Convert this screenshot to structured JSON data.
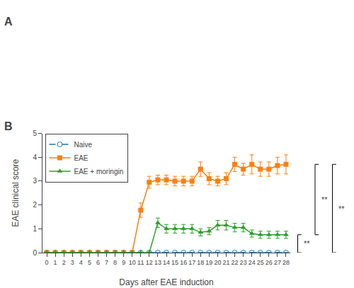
{
  "chart_data": {
    "type": "line",
    "xlabel": "Days after EAE induction",
    "ylabel": "EAE clinical score",
    "x": [
      0,
      1,
      2,
      3,
      4,
      5,
      6,
      7,
      8,
      9,
      10,
      11,
      12,
      13,
      14,
      15,
      16,
      17,
      18,
      19,
      20,
      21,
      22,
      23,
      24,
      25,
      26,
      27,
      28
    ],
    "series": [
      {
        "name": "Naive",
        "marker": "circle-open",
        "line_style": "dashed",
        "values": [
          0,
          0,
          0,
          0,
          0,
          0,
          0,
          0,
          0,
          0,
          0,
          0,
          0,
          0,
          0,
          0,
          0,
          0,
          0,
          0,
          0,
          0,
          0,
          0,
          0,
          0,
          0,
          0,
          0
        ],
        "errors": [
          0,
          0,
          0,
          0,
          0,
          0,
          0,
          0,
          0,
          0,
          0,
          0,
          0,
          0,
          0,
          0,
          0,
          0,
          0,
          0,
          0,
          0,
          0,
          0,
          0,
          0,
          0,
          0,
          0
        ]
      },
      {
        "name": "EAE",
        "marker": "square",
        "line_style": "solid",
        "values": [
          0,
          0,
          0,
          0,
          0,
          0,
          0,
          0,
          0,
          0,
          0,
          1.78,
          2.95,
          3.05,
          3.05,
          3.0,
          3.0,
          3.0,
          3.5,
          3.1,
          3.0,
          3.1,
          3.7,
          3.5,
          3.7,
          3.5,
          3.5,
          3.65,
          3.7
        ],
        "errors": [
          0,
          0,
          0,
          0,
          0,
          0,
          0,
          0,
          0,
          0,
          0,
          0.3,
          0.25,
          0.2,
          0.2,
          0.2,
          0.2,
          0.2,
          0.3,
          0.25,
          0.2,
          0.25,
          0.3,
          0.25,
          0.4,
          0.3,
          0.3,
          0.35,
          0.4
        ]
      },
      {
        "name": "EAE + moringin",
        "marker": "triangle-up",
        "line_style": "solid",
        "values": [
          0,
          0,
          0,
          0,
          0,
          0,
          0,
          0,
          0,
          0,
          0,
          0,
          0,
          1.25,
          1.0,
          1.0,
          1.0,
          1.0,
          0.85,
          0.9,
          1.15,
          1.15,
          1.05,
          1.05,
          0.8,
          0.75,
          0.75,
          0.75,
          0.75
        ],
        "errors": [
          0,
          0,
          0,
          0,
          0,
          0,
          0,
          0,
          0,
          0,
          0,
          0,
          0,
          0.2,
          0.18,
          0.18,
          0.18,
          0.18,
          0.15,
          0.15,
          0.2,
          0.2,
          0.18,
          0.18,
          0.15,
          0.15,
          0.15,
          0.15,
          0.15
        ]
      }
    ],
    "xlim": [
      -0.5,
      28.5
    ],
    "xticks": [
      0,
      1,
      2,
      3,
      4,
      5,
      6,
      7,
      8,
      9,
      10,
      11,
      12,
      13,
      14,
      15,
      16,
      17,
      18,
      19,
      20,
      21,
      22,
      23,
      24,
      25,
      26,
      27,
      28
    ],
    "ylim": [
      0,
      5
    ],
    "yticks": [
      0,
      1,
      2,
      3,
      4,
      5
    ],
    "grid": false,
    "legend": "upper left",
    "annotations": [
      {
        "text": "A"
      },
      {
        "text": "B"
      },
      {
        "text": "**",
        "y": [
          0.0,
          0.75
        ]
      },
      {
        "text": "**",
        "y": [
          0.75,
          3.7
        ]
      },
      {
        "text": "**",
        "y": [
          0.0,
          3.7
        ]
      }
    ]
  }
}
